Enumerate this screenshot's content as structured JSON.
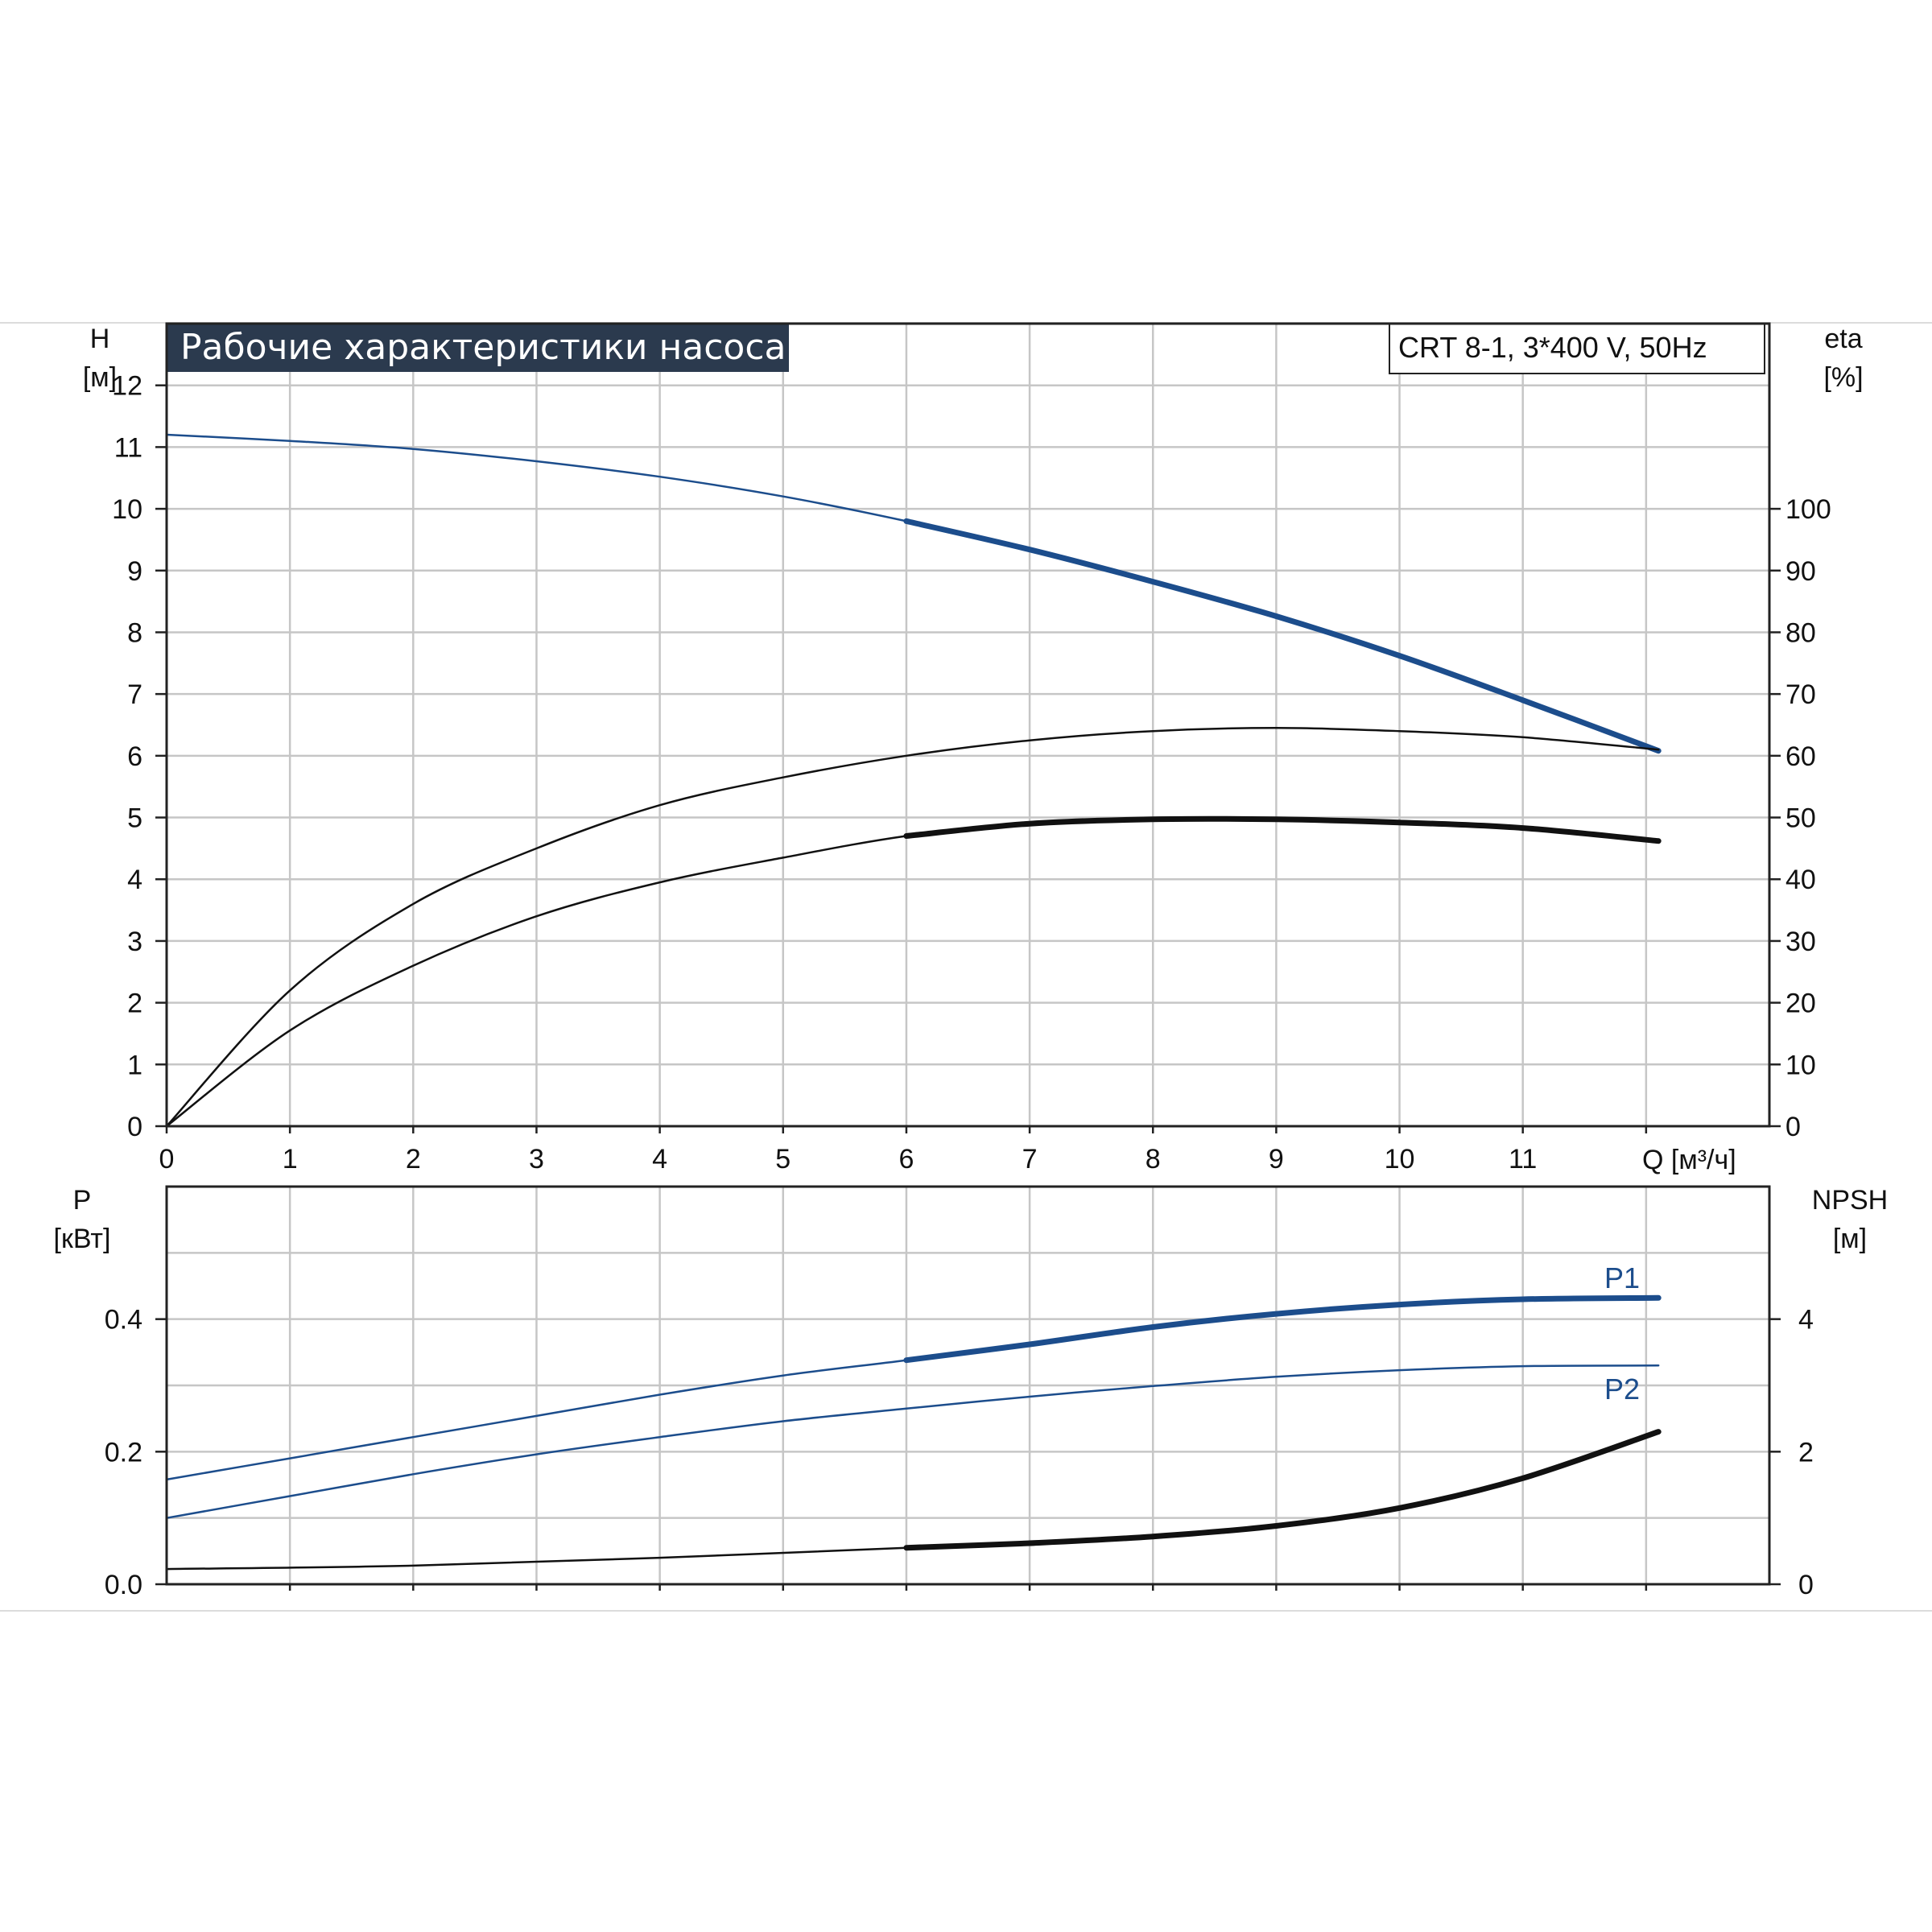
{
  "chart_data": [
    {
      "type": "line",
      "title": "Рабочие характеристики насоса",
      "model": "CRT 8-1, 3*400 V, 50Hz",
      "x_axis": {
        "label": "Q [м³/ч]",
        "range": [
          0,
          13
        ],
        "ticks": [
          "0",
          "1",
          "2",
          "3",
          "4",
          "5",
          "6",
          "7",
          "8",
          "9",
          "10",
          "11"
        ]
      },
      "y_left": {
        "label_line1": "H",
        "label_line2": "[м]",
        "range": [
          0,
          13
        ],
        "ticks": [
          "0",
          "1",
          "2",
          "3",
          "4",
          "5",
          "6",
          "7",
          "8",
          "9",
          "10",
          "11",
          "12"
        ]
      },
      "y_right": {
        "label_line1": "eta",
        "label_line2": "[%]",
        "range": [
          0,
          130
        ],
        "ticks": [
          "0",
          "10",
          "20",
          "30",
          "40",
          "50",
          "60",
          "70",
          "80",
          "90",
          "100"
        ]
      },
      "grid": true,
      "series": [
        {
          "axis": "left",
          "color": "#1c4d8c",
          "x": [
            0,
            1,
            2,
            3,
            4,
            5,
            6,
            7,
            8,
            9,
            10,
            11,
            12.1
          ],
          "y": [
            11.2,
            11.1,
            10.97,
            10.77,
            10.52,
            10.2,
            9.8,
            9.34,
            8.82,
            8.26,
            7.62,
            6.9,
            6.08
          ],
          "bold_from": 6
        },
        {
          "axis": "right",
          "color": "#111111",
          "x": [
            0,
            1,
            2,
            3,
            4,
            5,
            6,
            7,
            8,
            9,
            10,
            11,
            12.1
          ],
          "y": [
            0,
            22,
            36,
            45,
            52,
            56.5,
            60,
            62.5,
            64,
            64.5,
            64,
            63,
            61
          ],
          "bold_from": null
        },
        {
          "axis": "left",
          "color": "#111111",
          "x": [
            0,
            1,
            2,
            3,
            4,
            5,
            6,
            7,
            8,
            9,
            10,
            11,
            12.1
          ],
          "y": [
            0,
            1.55,
            2.6,
            3.4,
            3.95,
            4.35,
            4.7,
            4.9,
            4.97,
            4.97,
            4.92,
            4.83,
            4.62
          ],
          "bold_from": 6
        }
      ]
    },
    {
      "type": "line",
      "x_axis": {
        "range": [
          0,
          13
        ]
      },
      "y_left": {
        "label_line1": "P",
        "label_line2": "[кВт]",
        "range": [
          0,
          0.6
        ],
        "ticks": [
          "0.0",
          "0.2",
          "0.4"
        ],
        "tick_values": [
          0,
          0.2,
          0.4
        ]
      },
      "y_right": {
        "label_line1": "NPSH",
        "label_line2": "[м]",
        "range": [
          0,
          6
        ],
        "ticks": [
          "0",
          "2",
          "4"
        ],
        "tick_values": [
          0,
          2,
          4
        ]
      },
      "grid": true,
      "series": [
        {
          "name": "P1",
          "axis": "left",
          "color": "#1c4d8c",
          "x": [
            0,
            1,
            2,
            3,
            4,
            5,
            6,
            7,
            8,
            9,
            10,
            11,
            12.1
          ],
          "y": [
            0.158,
            0.19,
            0.222,
            0.254,
            0.286,
            0.315,
            0.338,
            0.362,
            0.388,
            0.408,
            0.422,
            0.43,
            0.432
          ],
          "bold_from": 6
        },
        {
          "name": "P2",
          "axis": "left",
          "color": "#1c4d8c",
          "x": [
            0,
            1,
            2,
            3,
            4,
            5,
            6,
            7,
            8,
            9,
            10,
            11,
            12.1
          ],
          "y": [
            0.1,
            0.133,
            0.166,
            0.196,
            0.222,
            0.246,
            0.265,
            0.283,
            0.299,
            0.313,
            0.323,
            0.329,
            0.33
          ],
          "bold_from": null
        },
        {
          "name": "NPSH",
          "axis": "right",
          "color": "#111111",
          "x": [
            0,
            2,
            4,
            6,
            7,
            8,
            9,
            10,
            11,
            12.1
          ],
          "y": [
            0.23,
            0.28,
            0.4,
            0.55,
            0.62,
            0.72,
            0.88,
            1.15,
            1.6,
            2.3
          ],
          "bold_from": 6
        }
      ]
    }
  ]
}
